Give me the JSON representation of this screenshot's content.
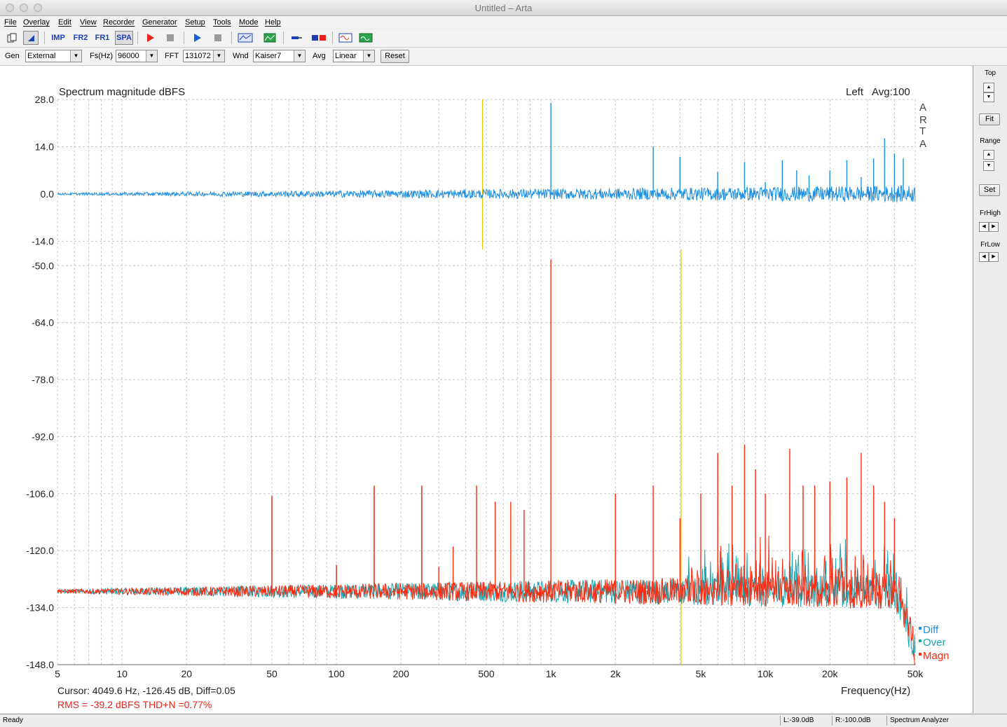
{
  "window": {
    "title": "Untitled – Arta"
  },
  "menu": [
    "File",
    "Overlay",
    "Edit",
    "View",
    "Recorder",
    "Generator",
    "Setup",
    "Tools",
    "Mode",
    "Help"
  ],
  "toolbar": {
    "imp_label": "IMP",
    "fr2_label": "FR2",
    "fr1_label": "FR1",
    "spa_label": "SPA",
    "icons": [
      "new-document-icon",
      "cursor-mode-icon",
      "impulse-mode",
      "fr2-mode",
      "fr1-mode",
      "spa-mode",
      "record-icon",
      "stop-icon",
      "play-icon",
      "stop2-icon",
      "abc-icon",
      "spectrum-icon",
      "probe-icon",
      "dual-icon",
      "generator-icon",
      "scope-icon"
    ]
  },
  "params": {
    "gen_label": "Gen",
    "gen_value": "External",
    "fs_label": "Fs(Hz)",
    "fs_value": "96000",
    "fft_label": "FFT",
    "fft_value": "131072",
    "wnd_label": "Wnd",
    "wnd_value": "Kaiser7",
    "avg_label": "Avg",
    "avg_value": "Linear",
    "reset_label": "Reset"
  },
  "chart_data": {
    "type": "line",
    "title": "Spectrum magnitude dBFS",
    "channel": "Left",
    "avg": "Avg:100",
    "watermark": [
      "A",
      "R",
      "T",
      "A"
    ],
    "xlabel": "Frequency(Hz)",
    "xscale": "log",
    "xlim": [
      5,
      50000
    ],
    "x_ticks": [
      "5",
      "10",
      "20",
      "50",
      "100",
      "200",
      "500",
      "1k",
      "2k",
      "5k",
      "10k",
      "20k",
      "50k"
    ],
    "upper_panel": {
      "y_ticks": [
        "28.0",
        "14.0",
        "0.0",
        "-14.0"
      ],
      "ylim": [
        -16,
        28
      ]
    },
    "lower_panel": {
      "y_ticks": [
        "-50.0",
        "-64.0",
        "-78.0",
        "-92.0",
        "-106.0",
        "-120.0",
        "-134.0",
        "-148.0"
      ],
      "ylim": [
        -148,
        -46
      ]
    },
    "markers": [
      {
        "panel": "upper",
        "freq": 480,
        "color": "#e6c200"
      },
      {
        "panel": "lower",
        "freq": 4050,
        "color": "#e6c200"
      }
    ],
    "series": [
      {
        "name": "Diff",
        "color": "#1e8fe0",
        "panel": "upper",
        "baseline": 0.0,
        "peaks": [
          [
            1000,
            27.0
          ],
          [
            3000,
            14.0
          ],
          [
            4000,
            11.0
          ],
          [
            6000,
            6.5
          ],
          [
            8000,
            9.5
          ],
          [
            10000,
            3.5
          ],
          [
            12000,
            10.0
          ],
          [
            14000,
            7.0
          ],
          [
            16000,
            5.5
          ],
          [
            20000,
            7.0
          ],
          [
            24000,
            10.0
          ],
          [
            28000,
            5.0
          ],
          [
            32000,
            10.5
          ],
          [
            36000,
            16.5
          ],
          [
            40000,
            12.0
          ],
          [
            44000,
            10.5
          ]
        ]
      },
      {
        "name": "Over",
        "color": "#1aa5b0",
        "panel": "lower",
        "baseline": -130.0,
        "peaks": [
          [
            50,
            -107.0
          ],
          [
            100,
            -124.0
          ],
          [
            150,
            -104.5
          ],
          [
            250,
            -104.5
          ]
        ]
      },
      {
        "name": "Magn",
        "color": "#ff2a10",
        "panel": "lower",
        "baseline": -130.0,
        "peaks": [
          [
            50,
            -106.5
          ],
          [
            100,
            -123.5
          ],
          [
            150,
            -104.0
          ],
          [
            250,
            -104.0
          ],
          [
            300,
            -124.0
          ],
          [
            350,
            -119.0
          ],
          [
            450,
            -104.0
          ],
          [
            550,
            -108.0
          ],
          [
            650,
            -108.0
          ],
          [
            750,
            -110.0
          ],
          [
            1000,
            -48.5
          ],
          [
            2000,
            -106.0
          ],
          [
            3000,
            -104.0
          ],
          [
            4000,
            -112.0
          ],
          [
            5000,
            -106.0
          ],
          [
            6000,
            -96.0
          ],
          [
            7000,
            -104.0
          ],
          [
            8000,
            -94.0
          ],
          [
            9000,
            -100.0
          ],
          [
            10000,
            -106.0
          ],
          [
            13000,
            -95.0
          ],
          [
            15000,
            -104.0
          ],
          [
            17000,
            -104.0
          ],
          [
            20000,
            -103.0
          ],
          [
            24000,
            -102.0
          ],
          [
            28000,
            -96.0
          ],
          [
            32000,
            -104.0
          ],
          [
            36000,
            -108.0
          ],
          [
            40000,
            -112.0
          ]
        ]
      }
    ],
    "legend": [
      "Diff",
      "Over",
      "Magn"
    ],
    "legend_position": "bottom-right"
  },
  "readout": {
    "cursor": "Cursor:  4049.6 Hz, -126.45 dB,  Diff=0.05",
    "rms": "RMS =  -39.2 dBFS   THD+N =0.77%"
  },
  "sidepanel": {
    "top_label": "Top",
    "fit_label": "Fit",
    "range_label": "Range",
    "set_label": "Set",
    "frhigh_label": "FrHigh",
    "frlow_label": "FrLow"
  },
  "status": {
    "ready": "Ready",
    "left_level": "L:-39.0dB",
    "right_level": "R:-100.0dB",
    "mode": "Spectrum Analyzer"
  }
}
